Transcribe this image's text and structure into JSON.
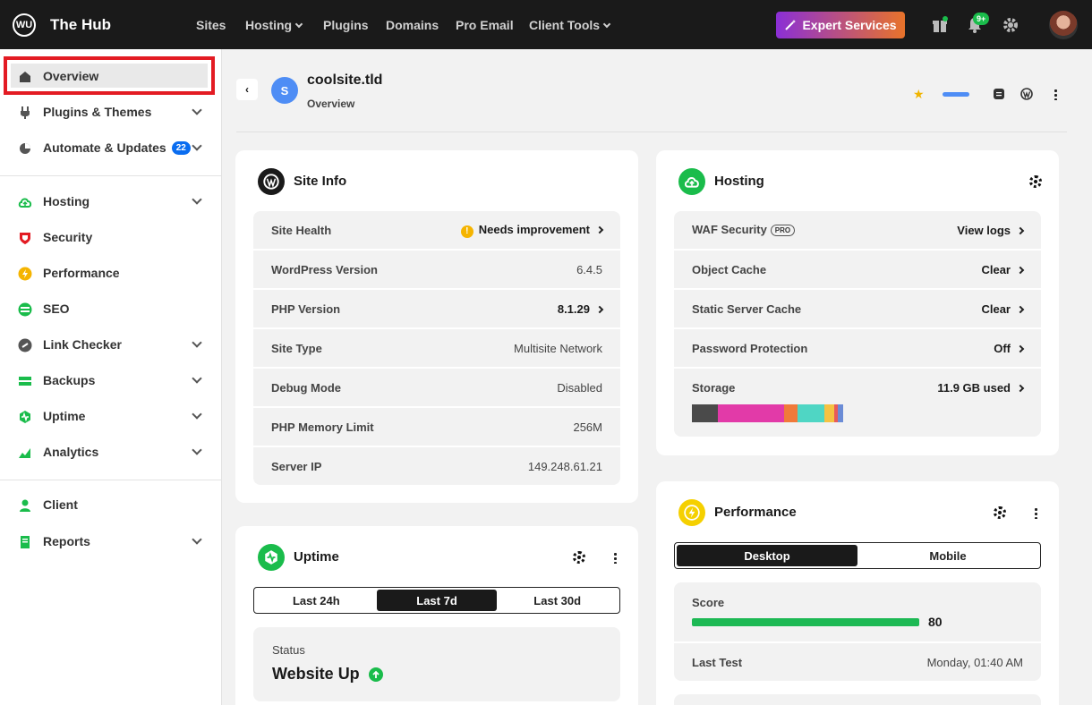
{
  "app": {
    "brand": "The Hub",
    "logo_text": "WU"
  },
  "topnav": {
    "items": [
      "Sites",
      "Hosting",
      "Plugins",
      "Domains",
      "Pro Email",
      "Client Tools"
    ],
    "expert_label": "Expert Services",
    "notif_badge": "9+"
  },
  "sidebar": {
    "items": [
      {
        "label": "Overview"
      },
      {
        "label": "Plugins & Themes"
      },
      {
        "label": "Automate & Updates",
        "badge": "22"
      },
      {
        "label": "Hosting"
      },
      {
        "label": "Security"
      },
      {
        "label": "Performance"
      },
      {
        "label": "SEO"
      },
      {
        "label": "Link Checker"
      },
      {
        "label": "Backups"
      },
      {
        "label": "Uptime"
      },
      {
        "label": "Analytics"
      },
      {
        "label": "Client"
      },
      {
        "label": "Reports"
      }
    ]
  },
  "site": {
    "initial": "S",
    "name": "coolsite.tld",
    "section": "Overview"
  },
  "site_info": {
    "title": "Site Info",
    "rows": [
      {
        "label": "Site Health",
        "value": "Needs improvement"
      },
      {
        "label": "WordPress Version",
        "value": "6.4.5"
      },
      {
        "label": "PHP Version",
        "value": "8.1.29"
      },
      {
        "label": "Site Type",
        "value": "Multisite Network"
      },
      {
        "label": "Debug Mode",
        "value": "Disabled"
      },
      {
        "label": "PHP Memory Limit",
        "value": "256M"
      },
      {
        "label": "Server IP",
        "value": "149.248.61.21"
      }
    ]
  },
  "hosting": {
    "title": "Hosting",
    "rows": [
      {
        "label": "WAF Security",
        "tag": "PRO",
        "value": "View logs"
      },
      {
        "label": "Object Cache",
        "value": "Clear"
      },
      {
        "label": "Static Server Cache",
        "value": "Clear"
      },
      {
        "label": "Password Protection",
        "value": "Off"
      },
      {
        "label": "Storage",
        "value": "11.9 GB used"
      }
    ],
    "storage_colors": [
      "#4a4a4a",
      "#e23aa8",
      "#f07a3a",
      "#4fd6c4",
      "#f5c242",
      "#e85a5a",
      "#6b8cd6"
    ]
  },
  "uptime": {
    "title": "Uptime",
    "tabs": [
      "Last 24h",
      "Last 7d",
      "Last 30d"
    ],
    "status_label": "Status",
    "status_value": "Website Up"
  },
  "performance": {
    "title": "Performance",
    "tabs": [
      "Desktop",
      "Mobile"
    ],
    "score_label": "Score",
    "score": "80",
    "last_test_label": "Last Test",
    "last_test_value": "Monday, 01:40 AM"
  }
}
